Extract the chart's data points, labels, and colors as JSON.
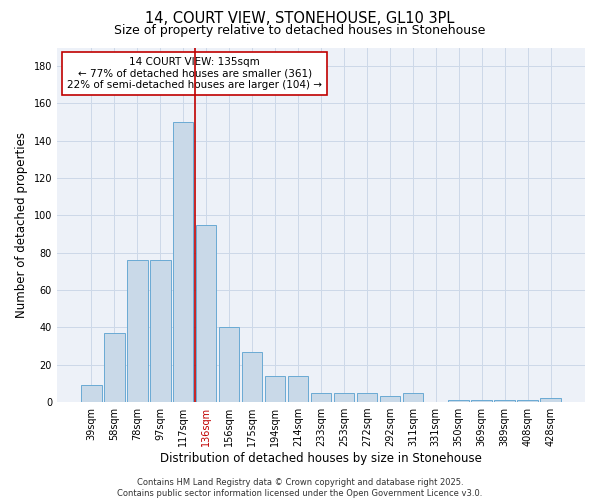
{
  "title1": "14, COURT VIEW, STONEHOUSE, GL10 3PL",
  "title2": "Size of property relative to detached houses in Stonehouse",
  "xlabel": "Distribution of detached houses by size in Stonehouse",
  "ylabel": "Number of detached properties",
  "bar_labels": [
    "39sqm",
    "58sqm",
    "78sqm",
    "97sqm",
    "117sqm",
    "136sqm",
    "156sqm",
    "175sqm",
    "194sqm",
    "214sqm",
    "233sqm",
    "253sqm",
    "272sqm",
    "292sqm",
    "311sqm",
    "331sqm",
    "350sqm",
    "369sqm",
    "389sqm",
    "408sqm",
    "428sqm"
  ],
  "bar_values": [
    9,
    37,
    76,
    76,
    150,
    95,
    40,
    27,
    14,
    14,
    5,
    5,
    5,
    3,
    5,
    0,
    1,
    1,
    1,
    1,
    2
  ],
  "bar_color": "#c9d9e8",
  "bar_edge_color": "#6aaad4",
  "vline_index": 4.5,
  "vline_color": "#c00000",
  "red_tick_index": 5,
  "annotation_text": "14 COURT VIEW: 135sqm\n← 77% of detached houses are smaller (361)\n22% of semi-detached houses are larger (104) →",
  "annotation_box_color": "#ffffff",
  "annotation_box_edge": "#c00000",
  "ylim": [
    0,
    190
  ],
  "yticks": [
    0,
    20,
    40,
    60,
    80,
    100,
    120,
    140,
    160,
    180
  ],
  "grid_color": "#cdd8e8",
  "background_color": "#edf1f8",
  "footer": "Contains HM Land Registry data © Crown copyright and database right 2025.\nContains public sector information licensed under the Open Government Licence v3.0.",
  "title_fontsize": 10.5,
  "subtitle_fontsize": 9,
  "ylabel_fontsize": 8.5,
  "xlabel_fontsize": 8.5,
  "tick_fontsize": 7,
  "footer_fontsize": 6,
  "annot_fontsize": 7.5
}
